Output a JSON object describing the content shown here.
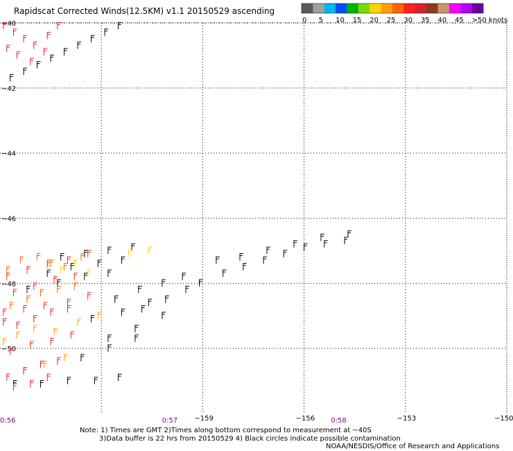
{
  "title": "Rapidscat Corrected Winds(12.5KM) v1.1 20150529 ascending",
  "legend": {
    "colors": [
      "#5a5a5a",
      "#a0a0a0",
      "#00b4f0",
      "#0050ff",
      "#00b400",
      "#78dc00",
      "#ffd200",
      "#ffa000",
      "#ff6400",
      "#ff2020",
      "#dc2030",
      "#8b3c1e",
      "#c8966e",
      "#ff00ff",
      "#b400ff",
      "#6e00a0"
    ],
    "labels": [
      "0",
      "5",
      "10",
      "15",
      "20",
      "25",
      "30",
      "35",
      "40",
      "45",
      ">50 knots"
    ]
  },
  "chart_data": {
    "type": "scatter",
    "title": "Rapidscat Corrected Winds(12.5KM) v1.1 20150529 ascending",
    "xlabel": "",
    "ylabel": "",
    "xlim": [
      -165,
      -150
    ],
    "ylim": [
      -52,
      -40
    ],
    "x_ticks": [
      -159,
      -156,
      -153,
      -150
    ],
    "x_tick_labels": [
      "−159",
      "−156",
      "−153",
      "−150"
    ],
    "y_ticks": [
      -40,
      -42,
      -44,
      -46,
      -48,
      -50
    ],
    "y_tick_labels": [
      "−40",
      "−42",
      "−44",
      "−46",
      "−48",
      "−50"
    ],
    "grid": true,
    "time_labels": [
      {
        "text": "0:56",
        "x": -165
      },
      {
        "text": "0:57",
        "x": -160
      },
      {
        "text": "0:58",
        "x": -155
      }
    ],
    "barb_series": [
      {
        "color": "#000000",
        "x": [
          -159.1,
          -158.4,
          -157.8,
          -157.2,
          -156.6,
          -156.0,
          -155.4,
          -154.8,
          -158.6,
          -157.9,
          -157.1,
          -156.3,
          -155.5,
          -154.7
        ],
        "y": [
          -48.1,
          -47.8,
          -47.6,
          -47.4,
          -47.2,
          -47.0,
          -46.9,
          -46.8,
          -47.4,
          -47.3,
          -47.1,
          -46.9,
          -46.7,
          -46.6
        ]
      },
      {
        "color": "#000000",
        "x": [
          -161.6,
          -160.9,
          -160.2,
          -159.6,
          -160.8,
          -160.1,
          -159.5,
          -162.3,
          -161.4,
          -160.6,
          -161.8,
          -161.0,
          -160.2,
          -162.6,
          -161.8,
          -161.0
        ],
        "y": [
          -48.6,
          -48.3,
          -48.1,
          -47.9,
          -48.9,
          -48.6,
          -48.3,
          -49.2,
          -49.0,
          -48.7,
          -49.8,
          -49.5,
          -49.1,
          -50.4,
          -50.1,
          -49.8
        ]
      },
      {
        "color": "#000000",
        "x": [
          -163.2,
          -162.5,
          -161.8,
          -161.1,
          -163.6,
          -162.9,
          -162.1,
          -161.4,
          -164.2,
          -163.3,
          -162.5,
          -161.8,
          -164.6,
          -163.8,
          -163.0,
          -162.2,
          -161.5
        ],
        "y": [
          -47.3,
          -47.2,
          -47.1,
          -47.0,
          -47.8,
          -47.6,
          -47.5,
          -47.4,
          -48.3,
          -48.1,
          -47.9,
          -47.8,
          -51.2,
          -51.2,
          -51.1,
          -51.1,
          -51.0
        ]
      },
      {
        "color": "#ff6400",
        "x": [
          -164.8,
          -164.4,
          -163.9,
          -163.5,
          -163.1,
          -162.6,
          -164.7,
          -164.2,
          -163.8,
          -163.3,
          -162.8
        ],
        "y": [
          -47.7,
          -47.4,
          -47.3,
          -47.5,
          -47.6,
          -47.3,
          -48.8,
          -48.6,
          -48.4,
          -48.3,
          -48.2
        ]
      },
      {
        "color": "#ffd200",
        "x": [
          -163.6,
          -163.2,
          -162.8,
          -162.4,
          -161.2,
          -160.6
        ],
        "y": [
          -47.6,
          -47.7,
          -47.5,
          -47.8,
          -47.2,
          -47.1
        ]
      },
      {
        "color": "#ffa000",
        "x": [
          -164.9,
          -164.5,
          -164.0,
          -163.4,
          -162.7,
          -162.1,
          -164.3,
          -163.7,
          -163.1
        ],
        "y": [
          -49.9,
          -49.7,
          -49.5,
          -49.6,
          -49.3,
          -49.1,
          -50.8,
          -50.6,
          -50.4
        ]
      },
      {
        "color": "#ff2020",
        "x": [
          -164.8,
          -164.2,
          -163.6,
          -163.0,
          -162.4,
          -164.6,
          -164.0,
          -163.4,
          -162.8,
          -164.9,
          -164.3,
          -163.7,
          -163.0,
          -162.4,
          -164.7,
          -164.1,
          -163.5,
          -162.9
        ],
        "y": [
          -47.9,
          -47.7,
          -47.5,
          -47.4,
          -47.2,
          -48.4,
          -48.2,
          -48.0,
          -47.9,
          -49.0,
          -48.9,
          -48.8,
          -48.7,
          -48.5,
          -50.2,
          -50.0,
          -49.9,
          -49.7
        ]
      },
      {
        "color": "#dc2030",
        "x": [
          -164.9,
          -164.5,
          -164.0,
          -163.5,
          -163.0,
          -164.8,
          -164.3,
          -163.8,
          -163.3,
          -164.6,
          -164.1,
          -163.6
        ],
        "y": [
          -49.3,
          -49.4,
          -49.2,
          -49.0,
          -48.9,
          -51.0,
          -50.8,
          -50.6,
          -50.5,
          -51.3,
          -51.2,
          -51.0
        ]
      },
      {
        "color": "#dc2030",
        "x": [
          -164.9,
          -164.6,
          -164.3,
          -164.0,
          -163.6,
          -163.3,
          -164.8,
          -164.5,
          -164.1,
          -163.7
        ],
        "y": [
          -40.2,
          -40.4,
          -40.6,
          -40.8,
          -40.5,
          -40.2,
          -40.9,
          -41.1,
          -41.3,
          -41.0
        ]
      },
      {
        "color": "#000000",
        "x": [
          -164.7,
          -164.3,
          -163.9,
          -163.5,
          -163.1,
          -162.7,
          -162.3,
          -161.9,
          -161.5
        ],
        "y": [
          -41.8,
          -41.6,
          -41.4,
          -41.2,
          -41.0,
          -40.8,
          -40.6,
          -40.4,
          -40.2
        ]
      }
    ],
    "annotations": [
      "Note: 1) Times are GMT 2)Times along bottom correspond to measurement at ~40S",
      "3)Data buffer is 22 hrs from 20150529 4) Black circles indicate possible contamination",
      "NOAA/NESDIS/Office of Research and Applications"
    ]
  },
  "footer": {
    "note1": "Note: 1) Times are GMT 2)Times along bottom correspond to measurement at ~40S",
    "note2": "3)Data buffer is 22 hrs from 20150529 4) Black circles indicate possible contamination",
    "credit": "NOAA/NESDIS/Office of Research and Applications"
  }
}
